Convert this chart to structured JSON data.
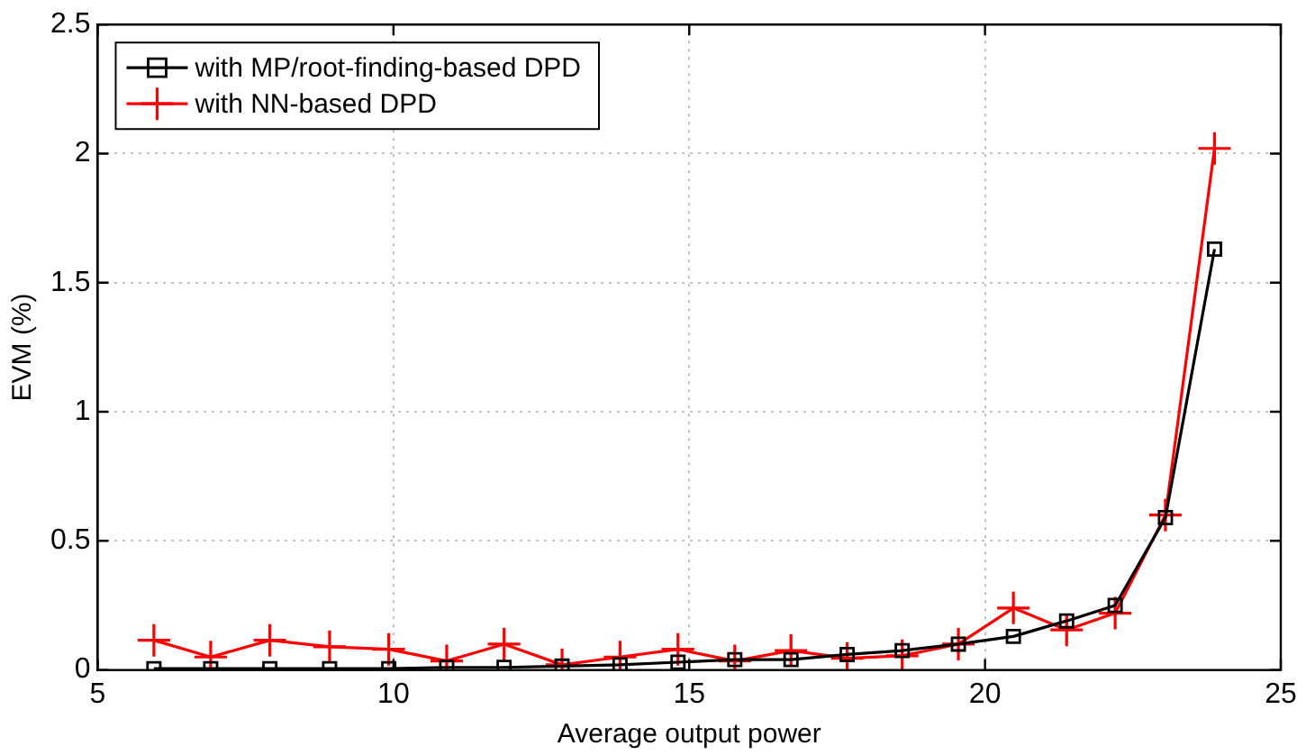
{
  "chart_data": {
    "type": "line",
    "xlabel": "Average output power",
    "ylabel": "EVM (%)",
    "x": [
      5.95,
      6.91,
      7.91,
      8.92,
      9.92,
      10.9,
      11.87,
      12.85,
      13.83,
      14.81,
      15.77,
      16.72,
      17.67,
      18.6,
      19.55,
      20.48,
      21.38,
      22.2,
      23.05,
      23.88
    ],
    "series": [
      {
        "name": "with MP/root-finding-based DPD",
        "color": "#000000",
        "marker": "square",
        "values": [
          0.005,
          0.005,
          0.005,
          0.005,
          0.005,
          0.01,
          0.01,
          0.015,
          0.02,
          0.03,
          0.04,
          0.04,
          0.06,
          0.075,
          0.1,
          0.13,
          0.19,
          0.25,
          0.59,
          1.63
        ]
      },
      {
        "name": "with NN-based DPD",
        "color": "#ff0000",
        "marker": "cross",
        "values": [
          0.115,
          0.05,
          0.115,
          0.09,
          0.08,
          0.035,
          0.1,
          0.02,
          0.05,
          0.08,
          0.035,
          0.075,
          0.045,
          0.055,
          0.1,
          0.24,
          0.155,
          0.22,
          0.6,
          2.02
        ]
      }
    ],
    "xlim": [
      5,
      25
    ],
    "xticks": [
      5,
      10,
      15,
      20,
      25
    ],
    "ylim": [
      0,
      2.5
    ],
    "yticks": [
      0,
      0.5,
      1,
      1.5,
      2,
      2.5
    ],
    "grid": true,
    "legend": "top left",
    "line_style": "solid"
  }
}
